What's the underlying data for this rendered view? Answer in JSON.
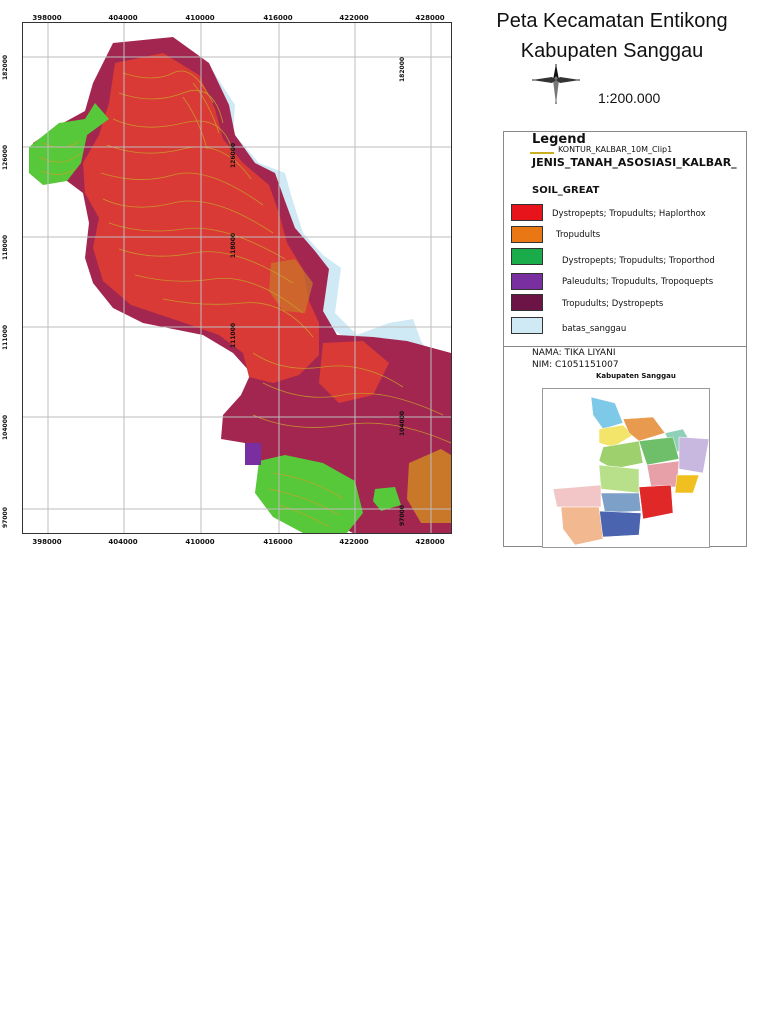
{
  "map": {
    "title_line1": "Peta Kecamatan Entikong",
    "title_line2": "Kabupaten Sanggau",
    "scale": "1:200.000",
    "x_ticks": [
      "398000",
      "404000",
      "410000",
      "416000",
      "422000",
      "428000"
    ],
    "y_ticks": [
      "182000",
      "126000",
      "118000",
      "111000",
      "104000",
      "97000"
    ],
    "inner_y_ticks": [
      "182000",
      "126000",
      "118000",
      "111000",
      "104000",
      "97000"
    ]
  },
  "legend": {
    "title": "Legend",
    "contour_label": "KONTUR_KALBAR_10M_Clip1",
    "layer_label": "JENIS_TANAH_ASOSIASI_KALBAR_",
    "field_label": "SOIL_GREAT",
    "items": [
      {
        "label": "Dystropepts; Tropudults; Haplorthox",
        "color": "#e8141c"
      },
      {
        "label": "Tropudults",
        "color": "#e87714"
      },
      {
        "label": "Dystropepts; Tropudults; Troporthod",
        "color": "#1aab4a"
      },
      {
        "label": "Paleudults; Tropudults, Tropoquepts",
        "color": "#7a2fa0"
      },
      {
        "label": "Tropudults; Dystropepts",
        "color": "#6b1445"
      },
      {
        "label": "batas_sanggau",
        "color": "#cfe9f5"
      }
    ]
  },
  "author": {
    "name": "NAMA: TIKA LIYANI",
    "nim": "NIM: C1051151007"
  },
  "inset": {
    "title": "Kabupaten Sanggau"
  },
  "colors": {
    "red": "#d93a36",
    "maroon": "#a32650",
    "green": "#57c83a",
    "orange": "#c9782a",
    "contour": "#c9a226",
    "water": "#cfe9f5"
  }
}
